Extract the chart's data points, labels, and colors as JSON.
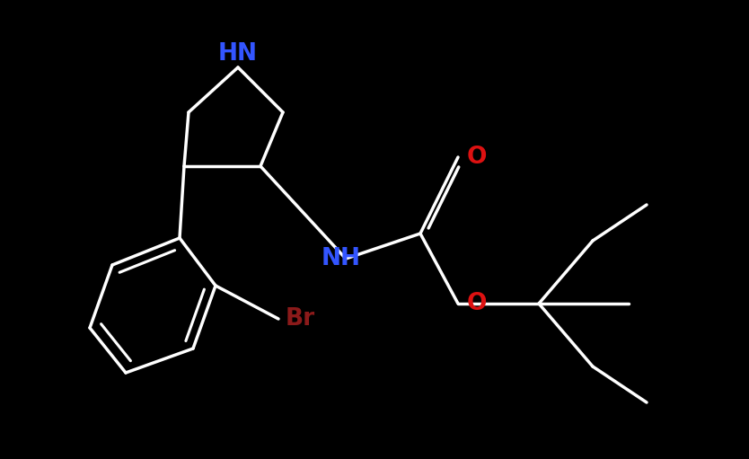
{
  "background_color": "#000000",
  "bond_color": "#ffffff",
  "bond_width": 2.5,
  "label_NH_pyr": {
    "text": "HN",
    "color": "#3355ff",
    "fontsize": 16
  },
  "label_NH_carb": {
    "text": "NH",
    "color": "#3355ff",
    "fontsize": 16
  },
  "label_O1": {
    "text": "O",
    "color": "#dd1111",
    "fontsize": 16
  },
  "label_O2": {
    "text": "O",
    "color": "#dd1111",
    "fontsize": 16
  },
  "label_Br": {
    "text": "Br",
    "color": "#8b1a1a",
    "fontsize": 16
  },
  "figsize": [
    8.34,
    5.11
  ],
  "dpi": 100
}
